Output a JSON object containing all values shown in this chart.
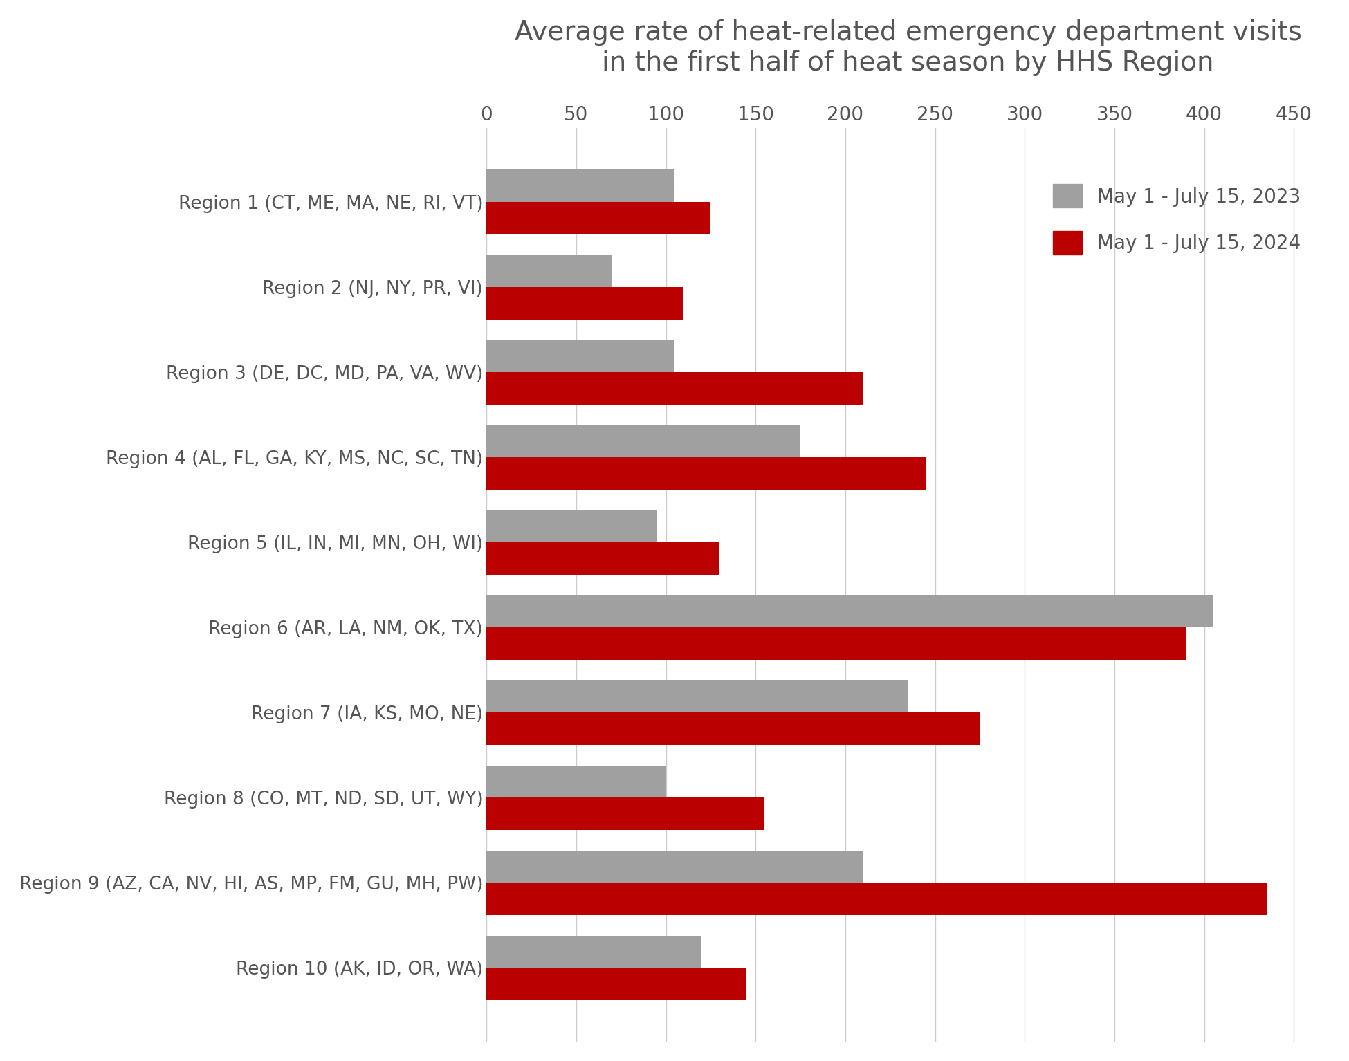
{
  "title": "Average rate of heat-related emergency department visits\nin the first half of heat season by HHS Region",
  "regions": [
    "Region 1 (CT, ME, MA, NE, RI, VT)",
    "Region 2 (NJ, NY, PR, VI)",
    "Region 3 (DE, DC, MD, PA, VA, WV)",
    "Region 4 (AL, FL, GA, KY, MS, NC, SC, TN)",
    "Region 5 (IL, IN, MI, MN, OH, WI)",
    "Region 6 (AR, LA, NM, OK, TX)",
    "Region 7 (IA, KS, MO, NE)",
    "Region 8 (CO, MT, ND, SD, UT, WY)",
    "Region 9 (AZ, CA, NV, HI, AS, MP, FM, GU, MH, PW)",
    "Region 10 (AK, ID, OR, WA)"
  ],
  "values_2023": [
    105,
    70,
    105,
    175,
    95,
    405,
    235,
    100,
    210,
    120
  ],
  "values_2024": [
    125,
    110,
    210,
    245,
    130,
    390,
    275,
    155,
    435,
    145
  ],
  "color_2023": "#a0a0a0",
  "color_2024": "#bb0000",
  "legend_2023": "May 1 - July 15, 2023",
  "legend_2024": "May 1 - July 15, 2024",
  "xlim": [
    0,
    470
  ],
  "xticks": [
    0,
    50,
    100,
    150,
    200,
    250,
    300,
    350,
    400,
    450
  ],
  "background_color": "#ffffff",
  "title_fontsize": 28,
  "tick_fontsize": 20,
  "label_fontsize": 19,
  "legend_fontsize": 20,
  "bar_height": 0.38,
  "grid_color": "#cccccc",
  "text_color": "#555555"
}
